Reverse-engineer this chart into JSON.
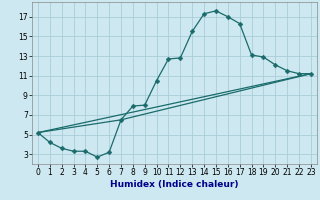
{
  "title": "",
  "xlabel": "Humidex (Indice chaleur)",
  "xlim": [
    -0.5,
    23.5
  ],
  "ylim": [
    2,
    18.5
  ],
  "xticks": [
    0,
    1,
    2,
    3,
    4,
    5,
    6,
    7,
    8,
    9,
    10,
    11,
    12,
    13,
    14,
    15,
    16,
    17,
    18,
    19,
    20,
    21,
    22,
    23
  ],
  "yticks": [
    3,
    5,
    7,
    9,
    11,
    13,
    15,
    17
  ],
  "bg_color": "#cde8f0",
  "grid_color": "#a8cdd8",
  "line_color": "#1a6b6b",
  "line1_x": [
    0,
    1,
    2,
    3,
    4,
    5,
    6,
    7,
    8,
    9,
    10,
    11,
    12,
    13,
    14,
    15,
    16,
    17,
    18,
    19,
    20,
    21,
    22,
    23
  ],
  "line1_y": [
    5.2,
    4.2,
    3.6,
    3.3,
    3.3,
    2.7,
    3.2,
    6.5,
    7.9,
    8.0,
    10.5,
    12.7,
    12.8,
    15.5,
    17.3,
    17.6,
    17.0,
    16.3,
    13.1,
    12.9,
    12.1,
    11.5,
    11.2,
    11.2
  ],
  "line2_x": [
    0,
    23
  ],
  "line2_y": [
    5.2,
    11.2
  ],
  "line3_x": [
    0,
    7,
    23
  ],
  "line3_y": [
    5.2,
    6.5,
    11.2
  ],
  "markersize": 2.5,
  "linewidth": 0.9,
  "xlabel_color": "#00008b",
  "xlabel_fontsize": 6.5,
  "tick_fontsize": 5.5,
  "xlabel_fontweight": "bold"
}
